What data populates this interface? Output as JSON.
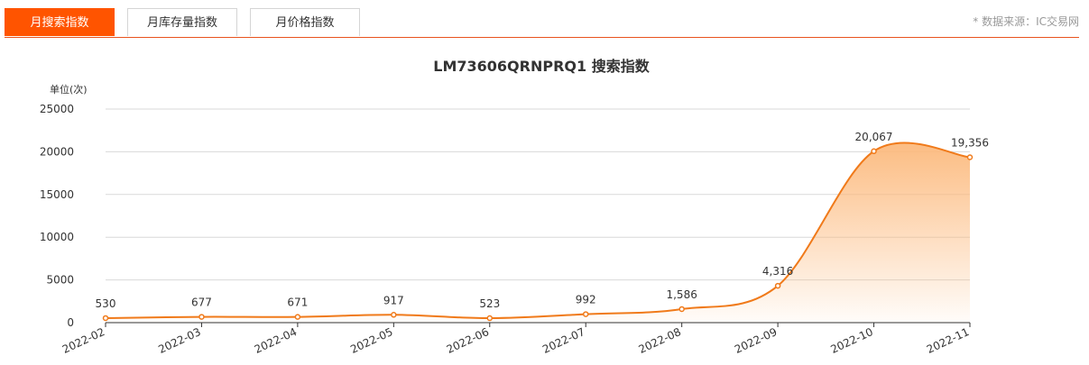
{
  "tabs": [
    {
      "label": "月搜索指数",
      "active": true
    },
    {
      "label": "月库存量指数",
      "active": false
    },
    {
      "label": "月价格指数",
      "active": false
    }
  ],
  "source": "* 数据来源：IC交易网",
  "colors": {
    "accent": "#ff5400",
    "line": "#f07a1a",
    "area_top": "#fcb97c",
    "grid": "#d9d9d9"
  },
  "chart_data": {
    "type": "area",
    "title": "LM73606QRNPRQ1 搜索指数",
    "ylabel": "单位(次)",
    "xlabel": "",
    "ylim": [
      0,
      25000
    ],
    "yticks": [
      0,
      5000,
      10000,
      15000,
      20000,
      25000
    ],
    "grid": true,
    "smooth": true,
    "categories": [
      "2022-02",
      "2022-03",
      "2022-04",
      "2022-05",
      "2022-06",
      "2022-07",
      "2022-08",
      "2022-09",
      "2022-10",
      "2022-11"
    ],
    "values": [
      530,
      677,
      671,
      917,
      523,
      992,
      1586,
      4316,
      20067,
      19356
    ],
    "data_labels": [
      "530",
      "677",
      "671",
      "917",
      "523",
      "992",
      "1,586",
      "4,316",
      "20,067",
      "19,356"
    ]
  }
}
